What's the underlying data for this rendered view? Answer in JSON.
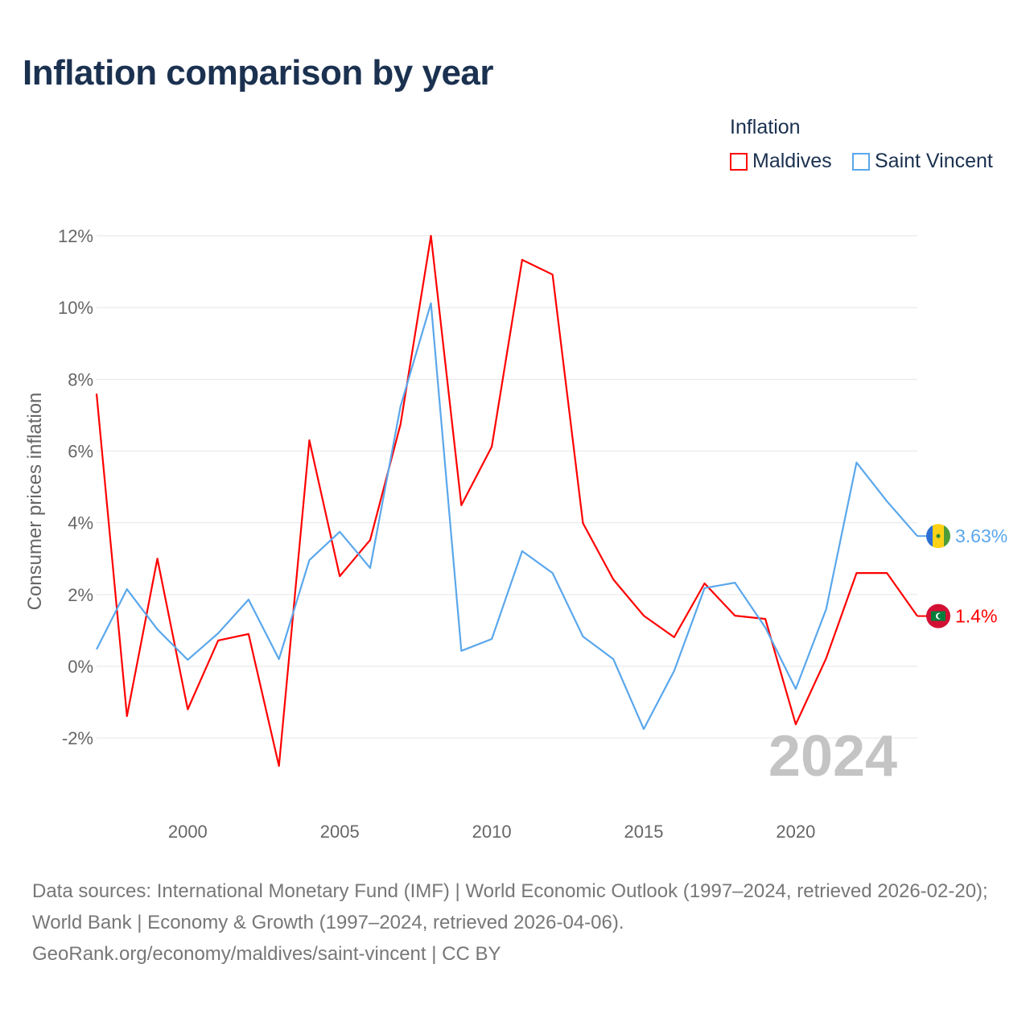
{
  "title": "Inflation comparison by year",
  "legend": {
    "title": "Inflation",
    "items": [
      {
        "name": "Maldives",
        "color": "#ff0000"
      },
      {
        "name": "Saint Vincent",
        "color": "#5aa7ec"
      }
    ]
  },
  "watermark_year": "2024",
  "source": {
    "line1": "Data sources: International Monetary Fund (IMF) | World Economic Outlook (1997–2024, retrieved 2026-02-20); World Bank | Economy & Growth (1997–2024, retrieved 2026-04-06).",
    "line2": "GeoRank.org/economy/maldives/saint-vincent | CC BY"
  },
  "chart_data": {
    "type": "line",
    "title": "Inflation comparison by year",
    "xlabel": "",
    "ylabel": "Consumer prices inflation",
    "xlim": [
      1997,
      2024
    ],
    "ylim": [
      -4,
      12.5
    ],
    "x_ticks": [
      2000,
      2005,
      2010,
      2015,
      2020
    ],
    "y_ticks": [
      -2,
      0,
      2,
      4,
      6,
      8,
      10,
      12
    ],
    "y_tick_labels": [
      "-2%",
      "0%",
      "2%",
      "4%",
      "6%",
      "8%",
      "10%",
      "12%"
    ],
    "grid": true,
    "legend_position": "top-right",
    "x": [
      1997,
      1998,
      1999,
      2000,
      2001,
      2002,
      2003,
      2004,
      2005,
      2006,
      2007,
      2008,
      2009,
      2010,
      2011,
      2012,
      2013,
      2014,
      2015,
      2016,
      2017,
      2018,
      2019,
      2020,
      2021,
      2022,
      2023,
      2024
    ],
    "series": [
      {
        "name": "Maldives",
        "color": "#ff0000",
        "end_label": "1.4%",
        "values": [
          7.6,
          -1.39,
          3.0,
          -1.2,
          0.72,
          0.9,
          -2.78,
          6.3,
          2.51,
          3.52,
          6.75,
          12.0,
          4.49,
          6.12,
          11.33,
          10.92,
          3.99,
          2.42,
          1.41,
          0.81,
          2.31,
          1.41,
          1.32,
          -1.62,
          0.22,
          2.6,
          2.6,
          1.4
        ]
      },
      {
        "name": "Saint Vincent",
        "color": "#5aa7ec",
        "end_label": "3.63%",
        "values": [
          0.47,
          2.15,
          1.03,
          0.18,
          0.92,
          1.86,
          0.2,
          2.96,
          3.75,
          2.74,
          7.25,
          10.12,
          0.43,
          0.76,
          3.21,
          2.6,
          0.83,
          0.2,
          -1.75,
          -0.13,
          2.18,
          2.33,
          1.08,
          -0.63,
          1.59,
          5.68,
          4.6,
          3.63
        ]
      }
    ]
  }
}
